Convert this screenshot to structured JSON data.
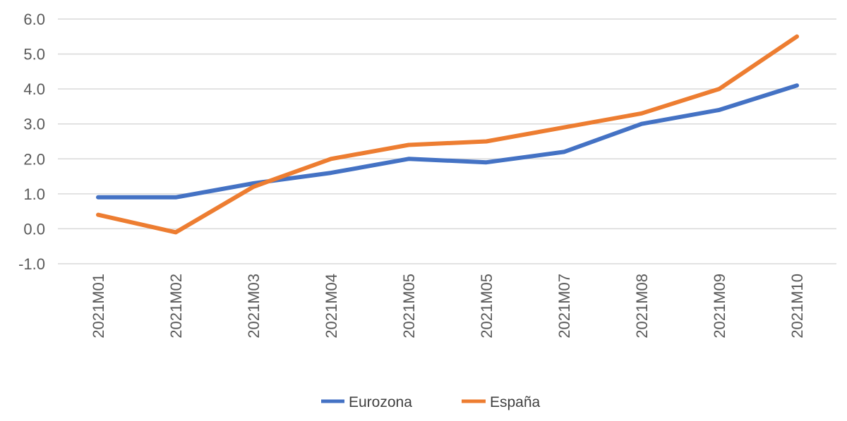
{
  "chart_data": {
    "type": "line",
    "title": "",
    "xlabel": "",
    "ylabel": "",
    "categories": [
      "2021M01",
      "2021M02",
      "2021M03",
      "2021M04",
      "2021M05",
      "2021M05",
      "2021M07",
      "2021M08",
      "2021M09",
      "2021M10"
    ],
    "ylim": [
      -1.0,
      6.0
    ],
    "yticks": [
      "-1.0",
      "0.0",
      "1.0",
      "2.0",
      "3.0",
      "4.0",
      "5.0",
      "6.0"
    ],
    "grid": true,
    "legend_position": "bottom",
    "series": [
      {
        "name": "Eurozona",
        "color": "#4472C4",
        "values": [
          0.9,
          0.9,
          1.3,
          1.6,
          2.0,
          1.9,
          2.2,
          3.0,
          3.4,
          4.1
        ]
      },
      {
        "name": "España",
        "color": "#ED7D31",
        "values": [
          0.4,
          -0.1,
          1.2,
          2.0,
          2.4,
          2.5,
          2.9,
          3.3,
          4.0,
          5.5
        ]
      }
    ]
  }
}
